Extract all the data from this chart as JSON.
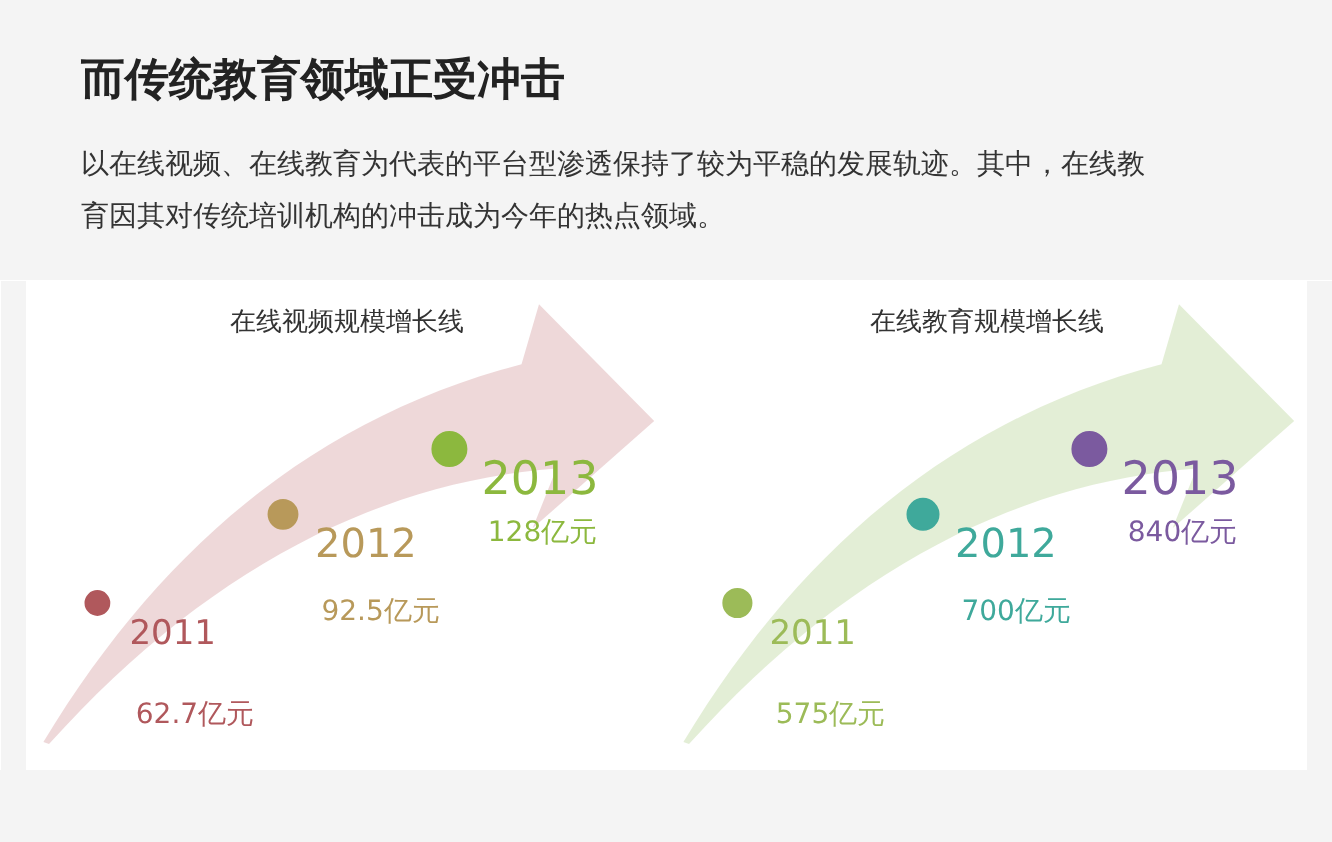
{
  "chart_data": [
    {
      "type": "other",
      "title": "而传统教育领域正受冲击",
      "subtitle": "以在线视频、在线教育为代表的平台型渗透保持了较为平稳的发展轨迹。其中，在线教育因其对传统培训机构的冲击成为今年的热点领域。"
    },
    {
      "type": "other",
      "title": "在线视频规模增长线",
      "categories": [
        "2011",
        "2012",
        "2013"
      ],
      "values": [
        62.7,
        92.5,
        128
      ],
      "value_labels": [
        "62.7亿元",
        "92.5亿元",
        "128亿元"
      ],
      "colors": [
        "#b0585c",
        "#b8995a",
        "#8cb83e"
      ]
    },
    {
      "type": "other",
      "title": "在线教育规模增长线",
      "categories": [
        "2011",
        "2012",
        "2013"
      ],
      "values": [
        575,
        700,
        840
      ],
      "value_labels": [
        "575亿元",
        "700亿元",
        "840亿元"
      ],
      "colors": [
        "#9cbb58",
        "#3fa99b",
        "#7b5a9f"
      ]
    }
  ]
}
